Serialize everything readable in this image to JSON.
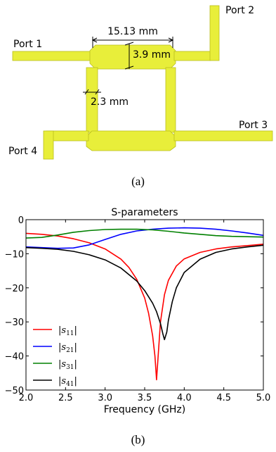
{
  "figure_a": {
    "ports": [
      "Port 1",
      "Port 2",
      "Port 3",
      "Port 4"
    ],
    "dims": {
      "length": "15.13 mm",
      "width_wide": "3.9 mm",
      "width_narrow": "2.3 mm"
    },
    "trace_color": "#e8ee3a",
    "caption": "(a)"
  },
  "figure_b": {
    "caption": "(b)"
  },
  "chart_data": {
    "type": "line",
    "title": "S-parameters",
    "xlabel": "Frequency (GHz)",
    "ylabel": "",
    "xlim": [
      2.0,
      5.0
    ],
    "ylim": [
      -50,
      0
    ],
    "xticks": [
      "2.0",
      "2.5",
      "3.0",
      "3.5",
      "4.0",
      "4.5",
      "5.0"
    ],
    "yticks": [
      "0",
      "−10",
      "−20",
      "−30",
      "−40",
      "−50"
    ],
    "grid": false,
    "legend_position": "lower-left",
    "series": [
      {
        "name": "|s11|",
        "color": "#ff0000",
        "x": [
          2.0,
          2.2,
          2.4,
          2.6,
          2.8,
          3.0,
          3.2,
          3.3,
          3.4,
          3.5,
          3.55,
          3.6,
          3.63,
          3.65,
          3.67,
          3.7,
          3.75,
          3.8,
          3.9,
          4.0,
          4.2,
          4.4,
          4.6,
          4.8,
          5.0
        ],
        "y": [
          -4.0,
          -4.3,
          -4.8,
          -5.6,
          -6.8,
          -8.6,
          -11.6,
          -14.0,
          -17.5,
          -23.0,
          -27.5,
          -34.0,
          -40.0,
          -47.0,
          -40.0,
          -30.0,
          -22.0,
          -17.8,
          -13.6,
          -11.5,
          -9.6,
          -8.6,
          -8.0,
          -7.6,
          -7.2
        ]
      },
      {
        "name": "|s21|",
        "color": "#0000ff",
        "x": [
          2.0,
          2.2,
          2.4,
          2.6,
          2.8,
          3.0,
          3.2,
          3.4,
          3.6,
          3.8,
          4.0,
          4.2,
          4.4,
          4.6,
          4.8,
          5.0
        ],
        "y": [
          -8.0,
          -8.2,
          -8.4,
          -8.3,
          -7.4,
          -5.8,
          -4.3,
          -3.3,
          -2.8,
          -2.5,
          -2.4,
          -2.5,
          -2.8,
          -3.3,
          -3.9,
          -4.6
        ]
      },
      {
        "name": "|s31|",
        "color": "#008000",
        "x": [
          2.0,
          2.2,
          2.4,
          2.6,
          2.8,
          3.0,
          3.2,
          3.4,
          3.6,
          3.8,
          4.0,
          4.2,
          4.4,
          4.6,
          4.8,
          5.0
        ],
        "y": [
          -5.4,
          -5.2,
          -4.5,
          -3.7,
          -3.2,
          -2.9,
          -2.8,
          -2.8,
          -3.0,
          -3.4,
          -3.9,
          -4.3,
          -4.7,
          -4.9,
          -5.0,
          -5.1
        ]
      },
      {
        "name": "|s41|",
        "color": "#000000",
        "x": [
          2.0,
          2.2,
          2.4,
          2.6,
          2.8,
          3.0,
          3.2,
          3.4,
          3.5,
          3.6,
          3.65,
          3.7,
          3.73,
          3.75,
          3.78,
          3.8,
          3.85,
          3.9,
          4.0,
          4.2,
          4.4,
          4.6,
          4.8,
          5.0
        ],
        "y": [
          -8.2,
          -8.4,
          -8.7,
          -9.3,
          -10.3,
          -11.8,
          -14.2,
          -18.0,
          -20.8,
          -24.5,
          -27.0,
          -30.5,
          -33.5,
          -35.2,
          -33.0,
          -29.5,
          -24.0,
          -20.0,
          -15.5,
          -11.6,
          -9.6,
          -8.6,
          -8.0,
          -7.5
        ]
      }
    ]
  }
}
